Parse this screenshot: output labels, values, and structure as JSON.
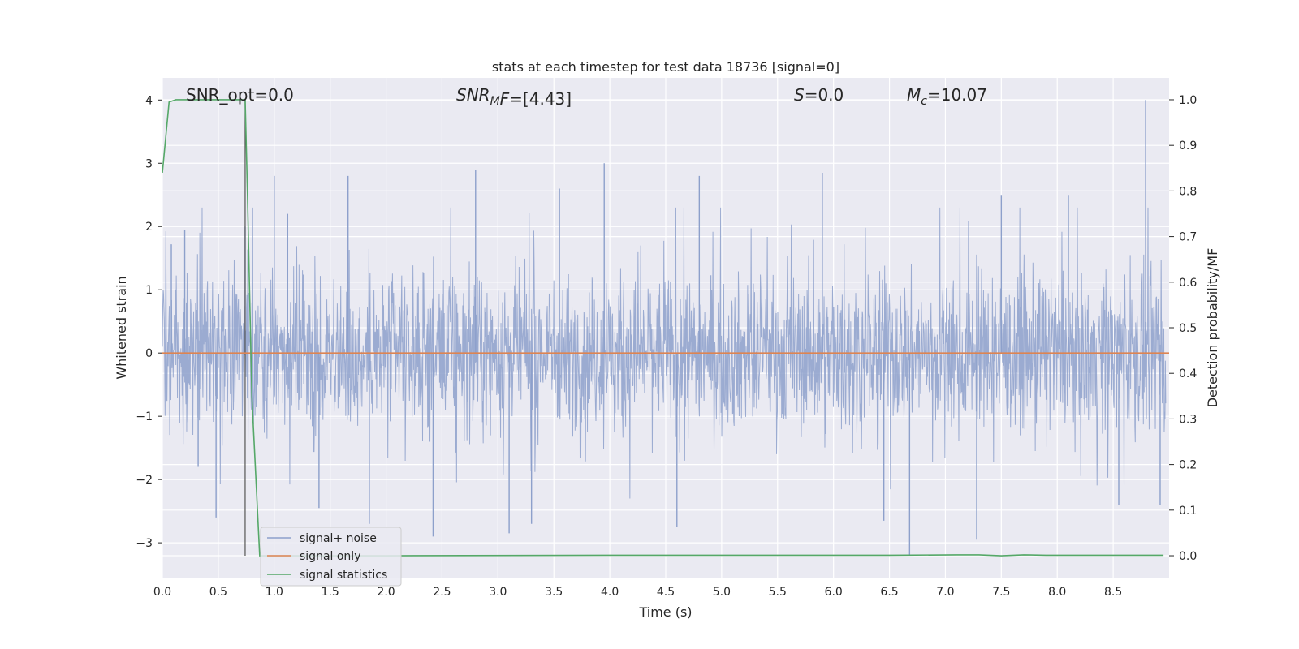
{
  "chart_data": {
    "type": "line",
    "title": "stats at each timestep for test data 18736 [signal=0]",
    "xlabel": "Time (s)",
    "ylabel_left": "Whitened strain",
    "ylabel_right": "Detection probability/MF",
    "xlim": [
      0,
      9.0
    ],
    "ylim_left": [
      -3.55,
      4.35
    ],
    "ylim_right": [
      -0.048,
      1.048
    ],
    "x_ticks": [
      "0.0",
      "0.5",
      "1.0",
      "1.5",
      "2.0",
      "2.5",
      "3.0",
      "3.5",
      "4.0",
      "4.5",
      "5.0",
      "5.5",
      "6.0",
      "6.5",
      "7.0",
      "7.5",
      "8.0",
      "8.5"
    ],
    "y_ticks_left": [
      "−3",
      "−2",
      "−1",
      "0",
      "1",
      "2",
      "3",
      "4"
    ],
    "y_ticks_right": [
      "0.0",
      "0.1",
      "0.2",
      "0.3",
      "0.4",
      "0.5",
      "0.6",
      "0.7",
      "0.8",
      "0.9",
      "1.0"
    ],
    "grid": true,
    "legend_position": "lower-left",
    "annotations": [
      {
        "prefix": "SNR_opt",
        "sub": "",
        "suffix": "=0.0",
        "italic": false
      },
      {
        "prefix": "SNR",
        "sub": "M",
        "suffix": "F=[4.43]",
        "italic": true
      },
      {
        "prefix": "S",
        "sub": "",
        "suffix": "=0.0",
        "italic": true
      },
      {
        "prefix": "M",
        "sub": "c",
        "suffix": "=10.07",
        "italic": true
      }
    ],
    "vline_x": 0.74,
    "series": [
      {
        "name": "signal+ noise",
        "color": "#8da0cb",
        "axis": "left",
        "description_note": "dense whitened noise, roughly +/-1.2 with spikes",
        "spikes": [
          {
            "x": 0.08,
            "y": 1.72
          },
          {
            "x": 0.2,
            "y": 1.95
          },
          {
            "x": 0.32,
            "y": -1.8
          },
          {
            "x": 0.48,
            "y": -2.6
          },
          {
            "x": 0.74,
            "y": 2.0
          },
          {
            "x": 1.0,
            "y": 2.8
          },
          {
            "x": 1.12,
            "y": 2.2
          },
          {
            "x": 1.4,
            "y": -2.45
          },
          {
            "x": 1.66,
            "y": 2.8
          },
          {
            "x": 1.85,
            "y": -2.7
          },
          {
            "x": 2.42,
            "y": -2.9
          },
          {
            "x": 2.8,
            "y": 2.9
          },
          {
            "x": 3.1,
            "y": -2.85
          },
          {
            "x": 3.3,
            "y": -2.7
          },
          {
            "x": 3.55,
            "y": 2.6
          },
          {
            "x": 3.95,
            "y": 3.0
          },
          {
            "x": 4.6,
            "y": -2.75
          },
          {
            "x": 4.8,
            "y": 2.8
          },
          {
            "x": 5.9,
            "y": 2.85
          },
          {
            "x": 6.45,
            "y": -2.65
          },
          {
            "x": 6.68,
            "y": -3.2
          },
          {
            "x": 7.28,
            "y": -2.95
          },
          {
            "x": 7.5,
            "y": 2.5
          },
          {
            "x": 8.1,
            "y": 2.5
          },
          {
            "x": 8.55,
            "y": -2.4
          },
          {
            "x": 8.79,
            "y": 4.0
          },
          {
            "x": 8.92,
            "y": -2.4
          }
        ]
      },
      {
        "name": "signal only",
        "color": "#dd8452",
        "axis": "left",
        "x": [
          0,
          9.0
        ],
        "y": [
          0,
          0
        ]
      },
      {
        "name": "signal statistics",
        "color": "#55a868",
        "axis": "right",
        "x": [
          0,
          0.06,
          0.12,
          0.3,
          0.5,
          0.7,
          0.74,
          0.76,
          0.8,
          0.87,
          0.95,
          2.0,
          4.0,
          6.5,
          7.1,
          7.3,
          7.5,
          7.7,
          7.9,
          8.3,
          8.95
        ],
        "y": [
          0.84,
          0.995,
          1.0,
          1.0,
          1.0,
          1.0,
          1.0,
          0.8,
          0.35,
          0.0,
          0.0,
          0.0,
          0.001,
          0.001,
          0.002,
          0.002,
          0.0,
          0.002,
          0.001,
          0.001,
          0.001
        ]
      }
    ]
  }
}
